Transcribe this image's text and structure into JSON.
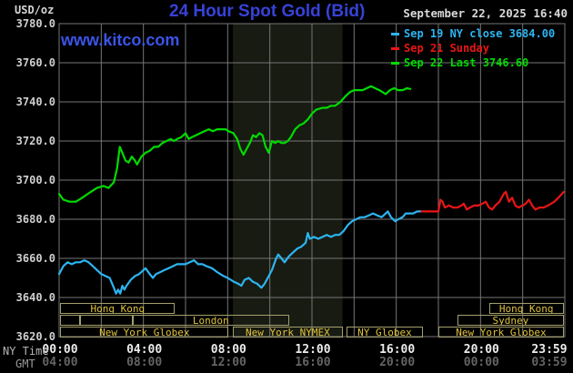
{
  "header": {
    "unit_label": "USD/oz",
    "title": "24 Hour Spot Gold (Bid)",
    "datetime": "September 22, 2025 16:40",
    "watermark": "www.kitco.com"
  },
  "legend": {
    "items": [
      {
        "label": "Sep 19 NY close 3684.00",
        "color": "#2cb5f2"
      },
      {
        "label": "Sep 21 Sunday",
        "color": "#ea1515"
      },
      {
        "label": "Sep 22 Last 3746.60",
        "color": "#00dc00"
      }
    ]
  },
  "axes": {
    "ny_caption": "NY Time",
    "gmt_caption": "GMT",
    "x_ticks": [
      {
        "t": 0,
        "ny": "00:00",
        "gmt": "04:00"
      },
      {
        "t": 4,
        "ny": "04:00",
        "gmt": "08:00"
      },
      {
        "t": 8,
        "ny": "08:00",
        "gmt": "12:00"
      },
      {
        "t": 12,
        "ny": "12:00",
        "gmt": "16:00"
      },
      {
        "t": 16,
        "ny": "16:00",
        "gmt": "20:00"
      },
      {
        "t": 20,
        "ny": "20:00",
        "gmt": "00:00"
      },
      {
        "t": 24,
        "ny": "23:59",
        "gmt": "03:59"
      }
    ],
    "y_ticks": [
      {
        "label": "3780.0",
        "value": 3780
      },
      {
        "label": "3760.0",
        "value": 3760
      },
      {
        "label": "3740.0",
        "value": 3740
      },
      {
        "label": "3720.0",
        "value": 3720
      },
      {
        "label": "3700.0",
        "value": 3700
      },
      {
        "label": "3680.0",
        "value": 3680
      },
      {
        "label": "3660.0",
        "value": 3660
      },
      {
        "label": "3640.0",
        "value": 3640
      },
      {
        "label": "3620.0",
        "value": 3620
      }
    ]
  },
  "sessions": [
    {
      "label": "Hong Kong",
      "row": 0,
      "t0": 0.05,
      "t1": 5.5
    },
    {
      "label": "",
      "row": 1,
      "t0": 0.05,
      "t1": 1.0
    },
    {
      "label": "",
      "row": 1,
      "t0": 1.0,
      "t1": 3.5
    },
    {
      "label": "London",
      "row": 1,
      "t0": 3.5,
      "t1": 10.9
    },
    {
      "label": "Sydney",
      "row": 1,
      "t0": 18.9,
      "t1": 23.95
    },
    {
      "label": "Hong Kong",
      "row": 0,
      "t0": 20.4,
      "t1": 23.95
    },
    {
      "label": "New York Globex",
      "row": 2,
      "t0": 0.05,
      "t1": 8.05
    },
    {
      "label": "New York NYMEX",
      "row": 2,
      "t0": 8.25,
      "t1": 13.45
    },
    {
      "label": "NY Globex",
      "row": 2,
      "t0": 13.65,
      "t1": 17.25
    },
    {
      "label": "New York Globex",
      "row": 2,
      "t0": 18.0,
      "t1": 23.95
    }
  ],
  "colors": {
    "background": "#000000",
    "grid": "#767676",
    "nymex_band": "#181b12",
    "session_border": "#a39f6b",
    "session_text": "#dfc33d",
    "title_blue": "#3742d8",
    "watermark_blue": "#3b54e8",
    "green_line": "#00dc00",
    "cyan_line": "#2cb5f2",
    "red_line": "#ea1515"
  },
  "chart_data": {
    "type": "line",
    "title": "24 Hour Spot Gold (Bid)",
    "xlabel": "NY Time",
    "ylabel": "USD/oz",
    "ylim": [
      3620,
      3780
    ],
    "xlim_hours": [
      0,
      24
    ],
    "x_grid_step_hours": 2,
    "grid": true,
    "legend_position": "top-right",
    "highlight_band_hours": {
      "t0": 8.25,
      "t1": 13.45,
      "note": "New York NYMEX session shading"
    },
    "series": [
      {
        "name": "Sep 22 Last 3746.60",
        "color": "#00dc00",
        "points": [
          [
            0,
            3693
          ],
          [
            0.2,
            3690
          ],
          [
            0.5,
            3689
          ],
          [
            0.8,
            3689
          ],
          [
            1.1,
            3691
          ],
          [
            1.5,
            3694
          ],
          [
            1.8,
            3696
          ],
          [
            2.1,
            3697
          ],
          [
            2.35,
            3696
          ],
          [
            2.6,
            3699
          ],
          [
            2.75,
            3706
          ],
          [
            2.88,
            3717
          ],
          [
            3.0,
            3714
          ],
          [
            3.15,
            3710
          ],
          [
            3.3,
            3709
          ],
          [
            3.45,
            3712
          ],
          [
            3.6,
            3710
          ],
          [
            3.7,
            3708
          ],
          [
            3.9,
            3712
          ],
          [
            4.1,
            3714
          ],
          [
            4.3,
            3715
          ],
          [
            4.5,
            3717
          ],
          [
            4.7,
            3717
          ],
          [
            4.9,
            3719
          ],
          [
            5.1,
            3720
          ],
          [
            5.3,
            3721
          ],
          [
            5.45,
            3720
          ],
          [
            5.6,
            3721
          ],
          [
            5.8,
            3722
          ],
          [
            6.0,
            3724
          ],
          [
            6.15,
            3721
          ],
          [
            6.3,
            3722
          ],
          [
            6.5,
            3723
          ],
          [
            6.7,
            3724
          ],
          [
            6.9,
            3725
          ],
          [
            7.1,
            3726
          ],
          [
            7.3,
            3725
          ],
          [
            7.5,
            3726
          ],
          [
            7.7,
            3726
          ],
          [
            7.9,
            3726
          ],
          [
            8.05,
            3725
          ],
          [
            8.27,
            3724
          ],
          [
            8.45,
            3721
          ],
          [
            8.6,
            3716
          ],
          [
            8.75,
            3713
          ],
          [
            8.9,
            3716
          ],
          [
            9.05,
            3719
          ],
          [
            9.2,
            3723
          ],
          [
            9.35,
            3722
          ],
          [
            9.5,
            3724
          ],
          [
            9.65,
            3723
          ],
          [
            9.8,
            3717
          ],
          [
            9.95,
            3714
          ],
          [
            10.1,
            3720
          ],
          [
            10.25,
            3719
          ],
          [
            10.4,
            3720
          ],
          [
            10.55,
            3719
          ],
          [
            10.7,
            3719
          ],
          [
            10.85,
            3720
          ],
          [
            11.0,
            3722
          ],
          [
            11.2,
            3726
          ],
          [
            11.4,
            3728
          ],
          [
            11.6,
            3729
          ],
          [
            11.8,
            3731
          ],
          [
            12.0,
            3734
          ],
          [
            12.2,
            3736
          ],
          [
            12.5,
            3737
          ],
          [
            12.7,
            3737
          ],
          [
            12.9,
            3738
          ],
          [
            13.1,
            3738
          ],
          [
            13.35,
            3740
          ],
          [
            13.6,
            3743
          ],
          [
            13.8,
            3745
          ],
          [
            14.0,
            3746
          ],
          [
            14.2,
            3746
          ],
          [
            14.4,
            3746
          ],
          [
            14.6,
            3747
          ],
          [
            14.8,
            3748
          ],
          [
            15.0,
            3747
          ],
          [
            15.2,
            3746
          ],
          [
            15.5,
            3744
          ],
          [
            15.7,
            3746
          ],
          [
            15.9,
            3747
          ],
          [
            16.1,
            3746
          ],
          [
            16.3,
            3746
          ],
          [
            16.5,
            3747
          ],
          [
            16.67,
            3746.6
          ]
        ]
      },
      {
        "name": "Sep 19 NY close 3684.00",
        "color": "#2cb5f2",
        "points": [
          [
            0,
            3652
          ],
          [
            0.2,
            3656
          ],
          [
            0.4,
            3658
          ],
          [
            0.6,
            3657
          ],
          [
            0.8,
            3658
          ],
          [
            1.0,
            3658
          ],
          [
            1.2,
            3659
          ],
          [
            1.4,
            3658
          ],
          [
            1.6,
            3656
          ],
          [
            1.8,
            3654
          ],
          [
            2.0,
            3652
          ],
          [
            2.2,
            3651
          ],
          [
            2.4,
            3650
          ],
          [
            2.6,
            3645
          ],
          [
            2.7,
            3642
          ],
          [
            2.8,
            3644
          ],
          [
            2.9,
            3642
          ],
          [
            3.0,
            3646
          ],
          [
            3.1,
            3644
          ],
          [
            3.2,
            3646
          ],
          [
            3.4,
            3649
          ],
          [
            3.6,
            3651
          ],
          [
            3.8,
            3652
          ],
          [
            4.0,
            3654
          ],
          [
            4.1,
            3655
          ],
          [
            4.3,
            3652
          ],
          [
            4.45,
            3650
          ],
          [
            4.6,
            3652
          ],
          [
            4.8,
            3653
          ],
          [
            5.0,
            3654
          ],
          [
            5.2,
            3655
          ],
          [
            5.4,
            3656
          ],
          [
            5.6,
            3657
          ],
          [
            5.8,
            3657
          ],
          [
            6.0,
            3657
          ],
          [
            6.2,
            3658
          ],
          [
            6.4,
            3659
          ],
          [
            6.6,
            3657
          ],
          [
            6.8,
            3657
          ],
          [
            7.0,
            3656
          ],
          [
            7.25,
            3655
          ],
          [
            7.5,
            3653
          ],
          [
            7.8,
            3651
          ],
          [
            8.0,
            3650
          ],
          [
            8.3,
            3648
          ],
          [
            8.5,
            3647
          ],
          [
            8.65,
            3646
          ],
          [
            8.8,
            3649
          ],
          [
            9.0,
            3650
          ],
          [
            9.2,
            3648
          ],
          [
            9.4,
            3647
          ],
          [
            9.6,
            3645
          ],
          [
            9.75,
            3647
          ],
          [
            9.9,
            3650
          ],
          [
            10.1,
            3654
          ],
          [
            10.3,
            3660
          ],
          [
            10.4,
            3662
          ],
          [
            10.55,
            3660
          ],
          [
            10.7,
            3658
          ],
          [
            10.9,
            3661
          ],
          [
            11.1,
            3663
          ],
          [
            11.3,
            3665
          ],
          [
            11.5,
            3666
          ],
          [
            11.7,
            3668
          ],
          [
            11.8,
            3673
          ],
          [
            11.9,
            3670
          ],
          [
            12.1,
            3671
          ],
          [
            12.3,
            3670
          ],
          [
            12.5,
            3671
          ],
          [
            12.7,
            3672
          ],
          [
            12.9,
            3671
          ],
          [
            13.1,
            3672
          ],
          [
            13.3,
            3672
          ],
          [
            13.5,
            3674
          ],
          [
            13.7,
            3677
          ],
          [
            13.9,
            3679
          ],
          [
            14.1,
            3680
          ],
          [
            14.3,
            3681
          ],
          [
            14.5,
            3681
          ],
          [
            14.7,
            3682
          ],
          [
            14.9,
            3683
          ],
          [
            15.1,
            3682
          ],
          [
            15.3,
            3681
          ],
          [
            15.5,
            3683
          ],
          [
            15.6,
            3684
          ],
          [
            15.75,
            3681
          ],
          [
            15.95,
            3679
          ],
          [
            16.1,
            3680
          ],
          [
            16.3,
            3681
          ],
          [
            16.45,
            3683
          ],
          [
            16.6,
            3683
          ],
          [
            16.8,
            3683
          ],
          [
            17.0,
            3684
          ],
          [
            17.2,
            3684
          ]
        ]
      },
      {
        "name": "Sep 21 Sunday",
        "color": "#ea1515",
        "points": [
          [
            17.2,
            3684
          ],
          [
            17.5,
            3684
          ],
          [
            17.8,
            3684
          ],
          [
            18.0,
            3684
          ],
          [
            18.05,
            3687
          ],
          [
            18.1,
            3690
          ],
          [
            18.2,
            3689
          ],
          [
            18.3,
            3686
          ],
          [
            18.5,
            3687
          ],
          [
            18.7,
            3686
          ],
          [
            18.9,
            3686
          ],
          [
            19.1,
            3687
          ],
          [
            19.2,
            3688
          ],
          [
            19.35,
            3685
          ],
          [
            19.5,
            3686
          ],
          [
            19.7,
            3687
          ],
          [
            19.9,
            3687
          ],
          [
            20.1,
            3688
          ],
          [
            20.25,
            3689
          ],
          [
            20.4,
            3686
          ],
          [
            20.55,
            3685
          ],
          [
            20.7,
            3687
          ],
          [
            20.9,
            3689
          ],
          [
            21.1,
            3693
          ],
          [
            21.2,
            3694
          ],
          [
            21.35,
            3689
          ],
          [
            21.5,
            3691
          ],
          [
            21.65,
            3687
          ],
          [
            21.8,
            3686
          ],
          [
            22.0,
            3687
          ],
          [
            22.15,
            3688
          ],
          [
            22.3,
            3690
          ],
          [
            22.45,
            3687
          ],
          [
            22.6,
            3685
          ],
          [
            22.8,
            3686
          ],
          [
            23.0,
            3686
          ],
          [
            23.2,
            3687
          ],
          [
            23.5,
            3689
          ],
          [
            23.7,
            3691
          ],
          [
            23.95,
            3694
          ]
        ]
      }
    ]
  }
}
